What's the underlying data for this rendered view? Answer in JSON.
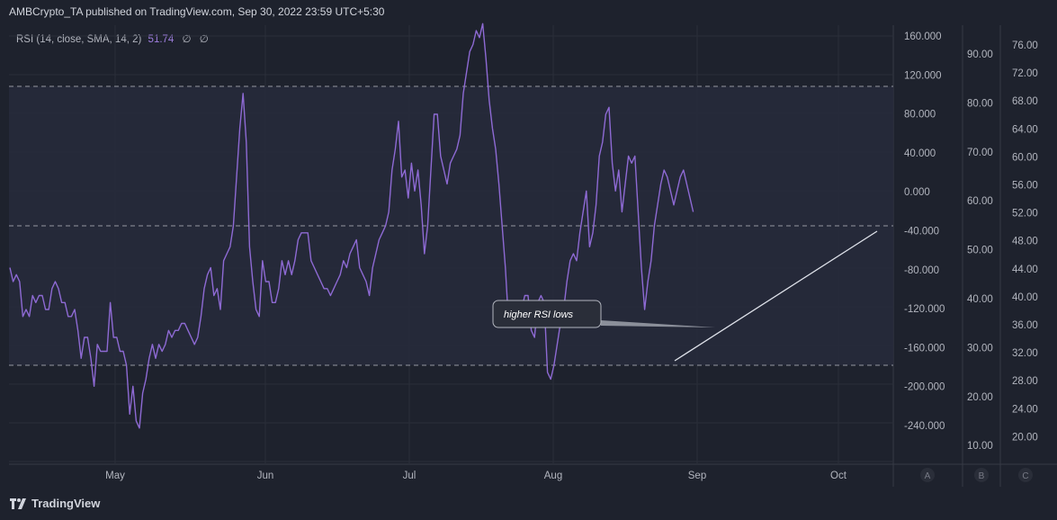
{
  "header": {
    "text": "AMBCrypto_TA published on TradingView.com, Sep 30, 2022 23:59 UTC+5:30"
  },
  "legend": {
    "label": "RSI (14, close, SMA, 14, 2)",
    "value": "51.74",
    "sym1": "∅",
    "sym2": "∅"
  },
  "footer": {
    "brand": "TradingView"
  },
  "annotation": {
    "text": "higher RSI lows"
  },
  "scale_buttons": [
    "A",
    "B",
    "C"
  ],
  "colors": {
    "rsi": "#8e6ad4",
    "trendline": "#e0e3eb",
    "bg": "#1e222d",
    "band": "#272a3c"
  },
  "chart_data": {
    "type": "line",
    "series": [
      {
        "name": "RSI (14, close, SMA, 14, 2)",
        "values": [
          44,
          42,
          43,
          42,
          37,
          38,
          37,
          40,
          39,
          40,
          40,
          38,
          38,
          41,
          42,
          41,
          39,
          39,
          37,
          37,
          38,
          35,
          31,
          34,
          34,
          31,
          27,
          33,
          32,
          32,
          32,
          39,
          34,
          34,
          32,
          32,
          30,
          23,
          27,
          22,
          21,
          26,
          28,
          31,
          33,
          31,
          33,
          32,
          33,
          35,
          34,
          35,
          35,
          36,
          36,
          35,
          34,
          33,
          34,
          37,
          41,
          43,
          44,
          40,
          41,
          38,
          45,
          46,
          47,
          50,
          57,
          64,
          69,
          62,
          47,
          42,
          38,
          37,
          45,
          42,
          42,
          39,
          39,
          41,
          45,
          43,
          45,
          43,
          45,
          48,
          49,
          49,
          49,
          45,
          44,
          43,
          42,
          41,
          41,
          40,
          41,
          42,
          43,
          45,
          44,
          46,
          47,
          48,
          44,
          43,
          42,
          40,
          44,
          46,
          48,
          49,
          50,
          52,
          58,
          61,
          65,
          57,
          58,
          54,
          59,
          55,
          58,
          53,
          46,
          50,
          58,
          66,
          66,
          60,
          58,
          56,
          59,
          60,
          61,
          63,
          69,
          72,
          75,
          76,
          78,
          77,
          79,
          74,
          68,
          64,
          61,
          56,
          50,
          44,
          36,
          36,
          39,
          39,
          38,
          40,
          40,
          35,
          34,
          39,
          40,
          39,
          29,
          28,
          30,
          33,
          36,
          38,
          42,
          45,
          46,
          45,
          49,
          52,
          55,
          47,
          49,
          53,
          60,
          62,
          66,
          67,
          59,
          55,
          58,
          52,
          56,
          60,
          59,
          60,
          52,
          44,
          38,
          42,
          45,
          50,
          53,
          56,
          58,
          57,
          55,
          53,
          55,
          57,
          58,
          56,
          54,
          52
        ]
      }
    ],
    "x_ticks": [
      "May",
      "Jun",
      "Jul",
      "Aug",
      "Sep",
      "Oct"
    ],
    "left_axis": {
      "ticks": [
        "160.000",
        "120.000",
        "80.000",
        "40.000",
        "0.000",
        "-40.000",
        "-80.000",
        "-120.000",
        "-160.000",
        "-200.000",
        "-240.000"
      ],
      "range": [
        -280,
        160
      ]
    },
    "mid_axis": {
      "ticks": [
        "90.00",
        "80.00",
        "70.00",
        "60.00",
        "50.00",
        "40.00",
        "30.00",
        "20.00",
        "10.00"
      ],
      "range": [
        2,
        100
      ]
    },
    "right_axis": {
      "ticks": [
        "76.00",
        "72.00",
        "68.00",
        "64.00",
        "60.00",
        "56.00",
        "52.00",
        "48.00",
        "44.00",
        "40.00",
        "36.00",
        "32.00",
        "28.00",
        "24.00",
        "20.00"
      ],
      "range": [
        15,
        79
      ]
    },
    "bands": {
      "upper": 70,
      "middle": 50,
      "lower": 30
    },
    "grid": true
  }
}
